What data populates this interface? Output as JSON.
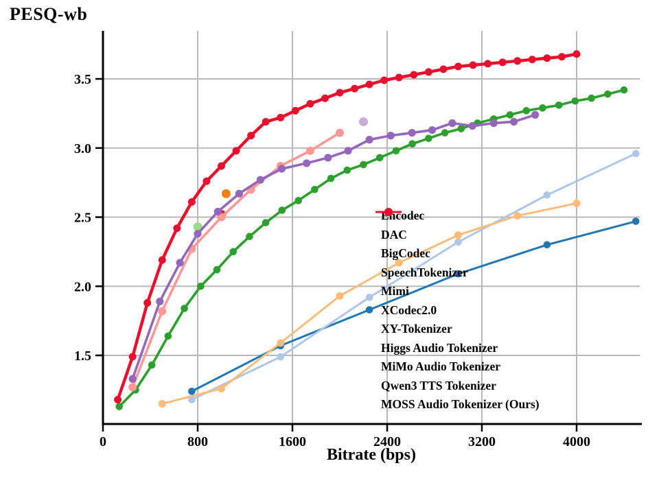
{
  "title": "PESQ-wb",
  "xlabel": "Bitrate (bps)",
  "chart_data": {
    "type": "line",
    "title": "PESQ-wb",
    "xlabel": "Bitrate (bps)",
    "ylabel": "PESQ-wb",
    "xlim": [
      0,
      4530
    ],
    "ylim": [
      1.0,
      3.84
    ],
    "xticks": [
      0,
      800,
      1600,
      2400,
      3200,
      4000
    ],
    "yticks": [
      1.5,
      2.0,
      2.5,
      3.0,
      3.5
    ],
    "grid": true,
    "grid_color": "#b8b8b8",
    "spine_color": "#000000",
    "legend_position": "center-right",
    "series": [
      {
        "name": "Encodec",
        "color": "#1f77b4",
        "lw": 3,
        "ms": 5.3,
        "x": [
          750,
          1500,
          2250,
          3000,
          3750,
          4500
        ],
        "y": [
          1.24,
          1.57,
          1.83,
          2.09,
          2.3,
          2.47
        ]
      },
      {
        "name": "DAC",
        "color": "#aec7e8",
        "lw": 3,
        "ms": 5.3,
        "x": [
          750,
          1500,
          2250,
          3000,
          3750,
          4500
        ],
        "y": [
          1.18,
          1.49,
          1.92,
          2.32,
          2.66,
          2.96
        ]
      },
      {
        "name": "BigCodec",
        "color": "#ff7f0e",
        "lw": 3,
        "ms": 6.5,
        "x": [
          1040
        ],
        "y": [
          2.67
        ]
      },
      {
        "name": "SpeechTokenizer",
        "color": "#ffbb78",
        "lw": 3,
        "ms": 5.5,
        "x": [
          500,
          1000,
          1500,
          2000,
          2500,
          3000,
          3500,
          4000
        ],
        "y": [
          1.15,
          1.26,
          1.59,
          1.93,
          2.17,
          2.37,
          2.51,
          2.6
        ]
      },
      {
        "name": "Mimi",
        "color": "#2ca02c",
        "lw": 3.6,
        "ms": 5.3,
        "x": [
          137.5,
          275,
          412.5,
          550,
          687.5,
          825,
          962.5,
          1100,
          1237.5,
          1375,
          1512.5,
          1650,
          1787.5,
          1925,
          2062.5,
          2200,
          2337.5,
          2475,
          2612.5,
          2750,
          2887.5,
          3025,
          3162.5,
          3300,
          3437.5,
          3575,
          3712.5,
          3850,
          3987.5,
          4125,
          4262.5,
          4400
        ],
        "y": [
          1.13,
          1.25,
          1.43,
          1.64,
          1.84,
          2.0,
          2.12,
          2.25,
          2.36,
          2.46,
          2.55,
          2.62,
          2.7,
          2.78,
          2.84,
          2.88,
          2.93,
          2.98,
          3.03,
          3.07,
          3.11,
          3.14,
          3.18,
          3.21,
          3.24,
          3.27,
          3.29,
          3.31,
          3.34,
          3.36,
          3.39,
          3.42
        ]
      },
      {
        "name": "XCodec2.0",
        "color": "#98df8a",
        "lw": 3,
        "ms": 6.5,
        "x": [
          800
        ],
        "y": [
          2.43
        ]
      },
      {
        "name": "XY-Tokenizer",
        "color": "#d62728",
        "lw": 3,
        "ms": 6.5,
        "x": [
          1000
        ],
        "y": [
          2.52
        ]
      },
      {
        "name": "Higgs Audio Tokenizer",
        "color": "#ff9896",
        "lw": 3.6,
        "ms": 6,
        "x": [
          250,
          500,
          750,
          1000,
          1250,
          1500,
          1750,
          2000
        ],
        "y": [
          1.27,
          1.82,
          2.27,
          2.5,
          2.7,
          2.87,
          2.98,
          3.11
        ]
      },
      {
        "name": "MiMo Audio Tokenizer",
        "color": "#9467bd",
        "lw": 3.6,
        "ms": 5.6,
        "x": [
          250,
          480,
          650,
          800,
          970,
          1150,
          1330,
          1510,
          1720,
          1900,
          2070,
          2250,
          2430,
          2610,
          2780,
          2950,
          3120,
          3300,
          3470,
          3650
        ],
        "y": [
          1.33,
          1.89,
          2.17,
          2.38,
          2.54,
          2.67,
          2.77,
          2.85,
          2.89,
          2.93,
          2.98,
          3.06,
          3.09,
          3.11,
          3.13,
          3.18,
          3.16,
          3.18,
          3.19,
          3.24
        ]
      },
      {
        "name": "Qwen3 TTS Tokenizer",
        "color": "#c5b0d5",
        "lw": 3,
        "ms": 6.5,
        "x": [
          2200
        ],
        "y": [
          3.19
        ]
      },
      {
        "name": "MOSS Audio Tokenizer (Ours)",
        "color": "#e8112d",
        "lw": 4.5,
        "ms": 5.5,
        "x": [
          125,
          250,
          375,
          500,
          625,
          750,
          875,
          1000,
          1125,
          1250,
          1375,
          1500,
          1625,
          1750,
          1875,
          2000,
          2125,
          2250,
          2375,
          2500,
          2625,
          2750,
          2875,
          3000,
          3125,
          3250,
          3375,
          3500,
          3625,
          3750,
          3875,
          4000
        ],
        "y": [
          1.18,
          1.49,
          1.88,
          2.19,
          2.42,
          2.61,
          2.76,
          2.87,
          2.98,
          3.09,
          3.19,
          3.22,
          3.27,
          3.32,
          3.36,
          3.4,
          3.43,
          3.46,
          3.49,
          3.51,
          3.53,
          3.55,
          3.57,
          3.59,
          3.6,
          3.61,
          3.62,
          3.63,
          3.64,
          3.65,
          3.66,
          3.68
        ]
      }
    ]
  }
}
